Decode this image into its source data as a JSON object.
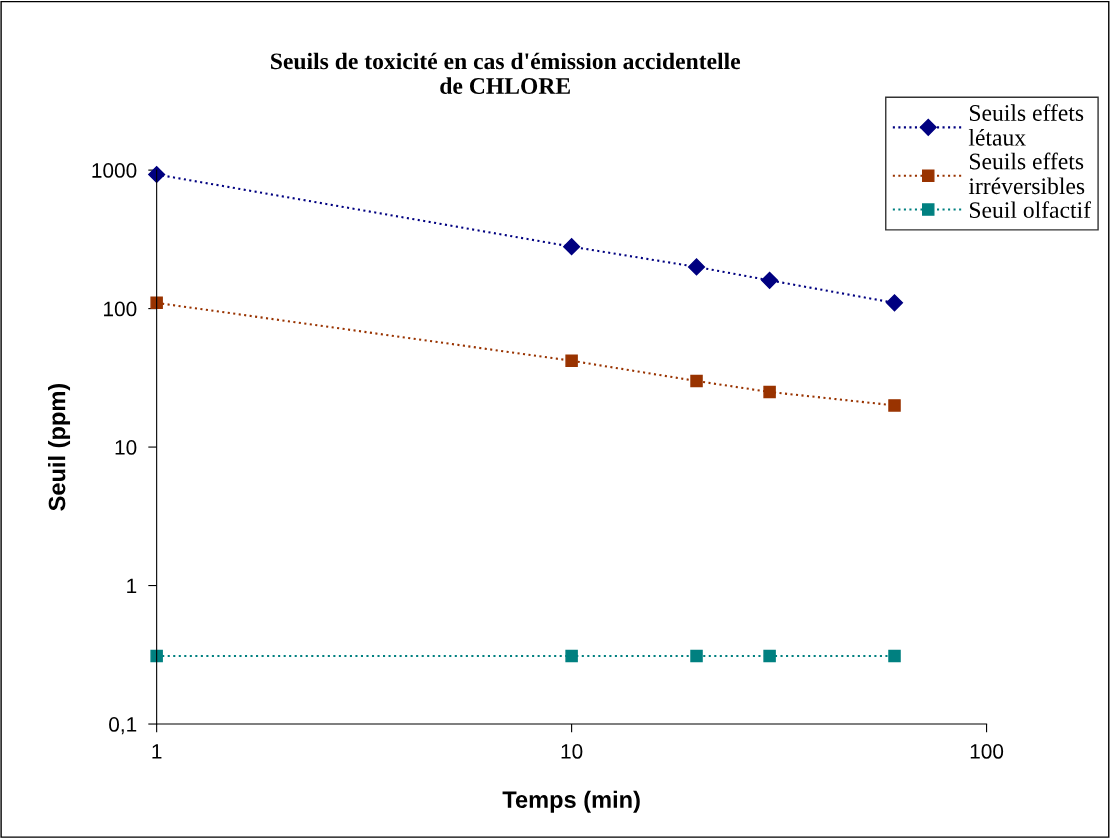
{
  "chart_data": {
    "type": "line",
    "title": "Seuils de toxicité en cas d'émission accidentelle\nde CHLORE",
    "xlabel": "Temps (min)",
    "ylabel": "Seuil (ppm)",
    "x": [
      1,
      10,
      20,
      30,
      60
    ],
    "series": [
      {
        "name": "Seuils effets\nlétaux",
        "color": "#000080",
        "marker": "diamond",
        "values": [
          930,
          280,
          200,
          160,
          110
        ]
      },
      {
        "name": "Seuils effets\nirréversibles",
        "color": "#993300",
        "marker": "square",
        "values": [
          110,
          42,
          30,
          25,
          20
        ]
      },
      {
        "name": "Seuil olfactif",
        "color": "#008080",
        "marker": "square",
        "values": [
          0.31,
          0.31,
          0.31,
          0.31,
          0.31
        ]
      }
    ],
    "log": "xy",
    "line_style": "dotted",
    "grid": false,
    "legend": "top right",
    "xlim": [
      1,
      100
    ],
    "xticks": [
      1,
      10,
      100
    ],
    "ylim": [
      0.1,
      1000
    ],
    "yticks": [
      {
        "value": 0.1,
        "label": "0,1"
      },
      1,
      10,
      100,
      1000
    ]
  }
}
